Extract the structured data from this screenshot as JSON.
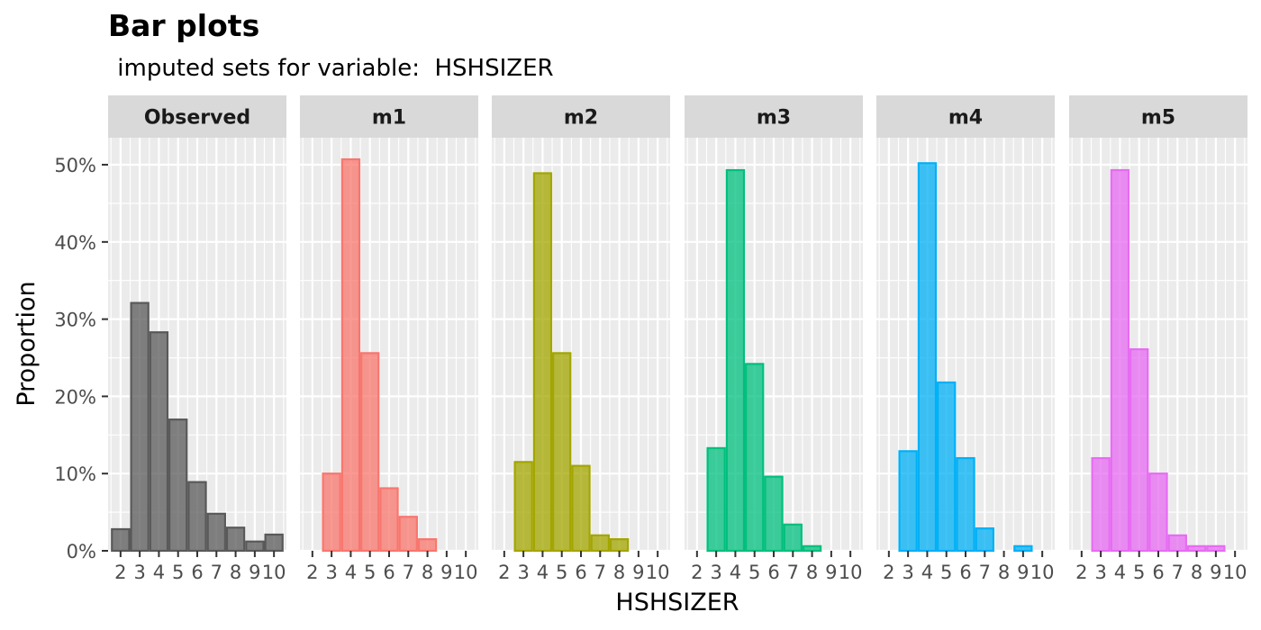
{
  "chart_data": {
    "type": "bar",
    "title": "Bar plots",
    "subtitle": " imputed sets for variable:  HSHSIZER",
    "xlabel": "HSHSIZER",
    "ylabel": "Proportion",
    "ylim": [
      0,
      0.535
    ],
    "x_range": [
      1.35,
      10.65
    ],
    "y_ticks": [
      0,
      0.1,
      0.2,
      0.3,
      0.4,
      0.5
    ],
    "y_tick_labels": [
      "0%",
      "10%",
      "20%",
      "30%",
      "40%",
      "50%"
    ],
    "categories": [
      2,
      3,
      4,
      5,
      6,
      7,
      8,
      9,
      10
    ],
    "x_tick_labels": [
      "2",
      "3",
      "4",
      "5",
      "6",
      "7",
      "8",
      "9",
      "10"
    ],
    "grid": true,
    "panel_background": "#ebebeb",
    "strip_background": "#d9d9d9",
    "series": [
      {
        "name": "Observed",
        "color": "#595959",
        "values": [
          0.028,
          0.321,
          0.283,
          0.17,
          0.089,
          0.048,
          0.03,
          0.012,
          0.021
        ]
      },
      {
        "name": "m1",
        "color": "#F8766D",
        "values": [
          0,
          0.1,
          0.507,
          0.256,
          0.081,
          0.044,
          0.015,
          0,
          0
        ]
      },
      {
        "name": "m2",
        "color": "#A3A500",
        "values": [
          0,
          0.115,
          0.489,
          0.256,
          0.11,
          0.02,
          0.015,
          0,
          0
        ]
      },
      {
        "name": "m3",
        "color": "#00BF7D",
        "values": [
          0,
          0.133,
          0.493,
          0.242,
          0.096,
          0.034,
          0.006,
          0,
          0
        ]
      },
      {
        "name": "m4",
        "color": "#00B0F6",
        "values": [
          0,
          0.129,
          0.502,
          0.218,
          0.12,
          0.029,
          0,
          0.006,
          0
        ]
      },
      {
        "name": "m5",
        "color": "#E76BF3",
        "values": [
          0,
          0.12,
          0.493,
          0.261,
          0.1,
          0.02,
          0.006,
          0.006,
          0
        ]
      }
    ]
  }
}
